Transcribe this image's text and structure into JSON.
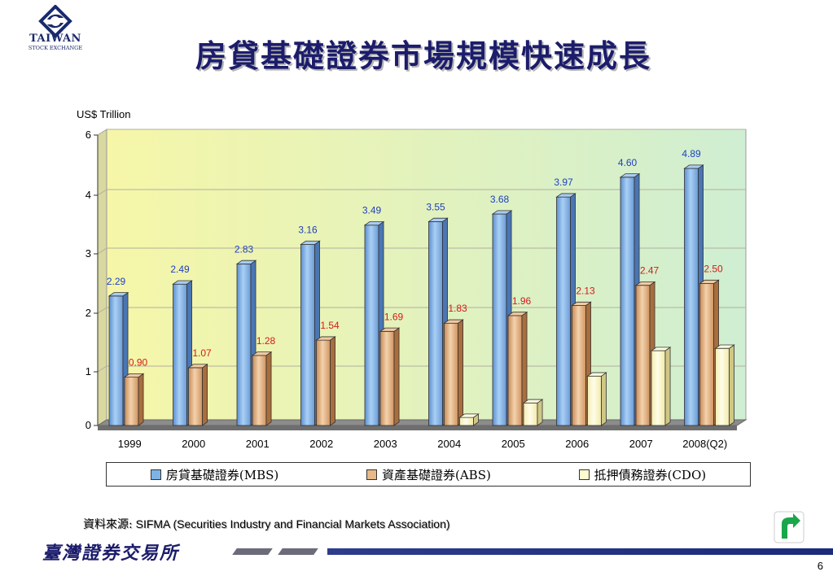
{
  "header": {
    "title": "房貸基礎證券市場規模快速成長",
    "logo_text": "TAIWAN",
    "logo_sub": "STOCK EXCHANGE"
  },
  "chart_data": {
    "type": "bar",
    "ylabel": "US$ Trillion",
    "y_ticks": [
      "0",
      "1",
      "2",
      "3",
      "4",
      "6"
    ],
    "categories": [
      "1999",
      "2000",
      "2001",
      "2002",
      "2003",
      "2004",
      "2005",
      "2006",
      "2007",
      "2008(Q2)"
    ],
    "series": [
      {
        "name": "房貸基礎證券(MBS)",
        "values": [
          2.29,
          2.49,
          2.83,
          3.16,
          3.49,
          3.55,
          3.68,
          3.97,
          4.6,
          4.89
        ],
        "labels": [
          "2.29",
          "2.49",
          "2.83",
          "3.16",
          "3.49",
          "3.55",
          "3.68",
          "3.97",
          "4.60",
          "4.89"
        ]
      },
      {
        "name": "資產基礎證券(ABS)",
        "values": [
          0.9,
          1.07,
          1.28,
          1.54,
          1.69,
          1.83,
          1.96,
          2.13,
          2.47,
          2.5
        ],
        "labels": [
          "0.90",
          "1.07",
          "1.28",
          "1.54",
          "1.69",
          "1.83",
          "1.96",
          "2.13",
          "2.47",
          "2.50"
        ]
      },
      {
        "name": "抵押債務證券(CDO)",
        "values": [
          0,
          0,
          0,
          0,
          0,
          0.15,
          0.42,
          0.92,
          1.36,
          1.4
        ],
        "labels": []
      }
    ],
    "colors": {
      "mbs": "#7eb3e6",
      "abs": "#e7b88a",
      "cdo": "#fffbd0",
      "mbs_label": "#1f3fbf",
      "abs_label": "#d61a1a"
    },
    "legend_position": "bottom",
    "grid": true
  },
  "source": {
    "prefix": "資料來源:",
    "text": " SIFMA (Securities Industry and Financial Markets Association)"
  },
  "footer": {
    "org_name": "臺灣證券交易所",
    "page_number": "6"
  },
  "icons": {
    "logo": "exchange-logo-icon",
    "next": "next-arrow-icon"
  }
}
